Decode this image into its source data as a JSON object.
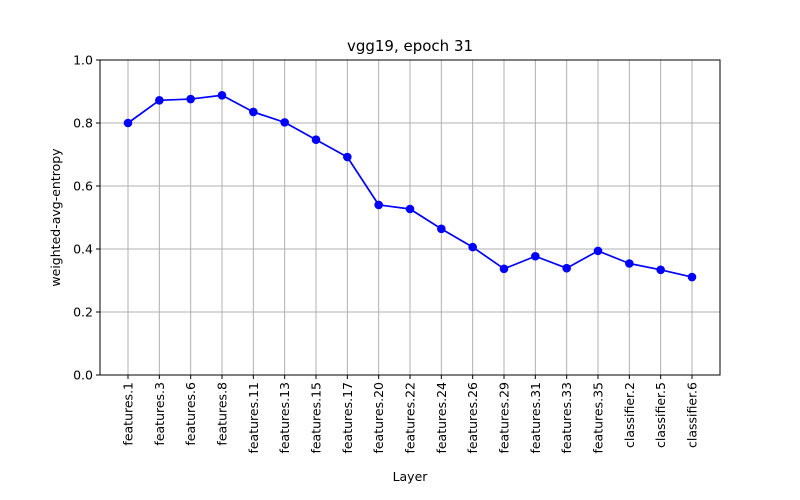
{
  "chart_data": {
    "type": "line",
    "title": "vgg19, epoch 31",
    "xlabel": "Layer",
    "ylabel": "weighted-avg-entropy",
    "ylim": [
      0.0,
      1.0
    ],
    "yticks": [
      "0.0",
      "0.2",
      "0.4",
      "0.6",
      "0.8",
      "1.0"
    ],
    "grid": true,
    "categories": [
      "features.1",
      "features.3",
      "features.6",
      "features.8",
      "features.11",
      "features.13",
      "features.15",
      "features.17",
      "features.20",
      "features.22",
      "features.24",
      "features.26",
      "features.29",
      "features.31",
      "features.33",
      "features.35",
      "classifier.2",
      "classifier.5",
      "classifier.6"
    ],
    "series": [
      {
        "color": "#0000ff",
        "marker": "circle",
        "values": [
          0.8,
          0.872,
          0.876,
          0.888,
          0.835,
          0.802,
          0.747,
          0.692,
          0.54,
          0.527,
          0.464,
          0.406,
          0.337,
          0.377,
          0.339,
          0.394,
          0.354,
          0.334,
          0.311
        ]
      }
    ]
  }
}
